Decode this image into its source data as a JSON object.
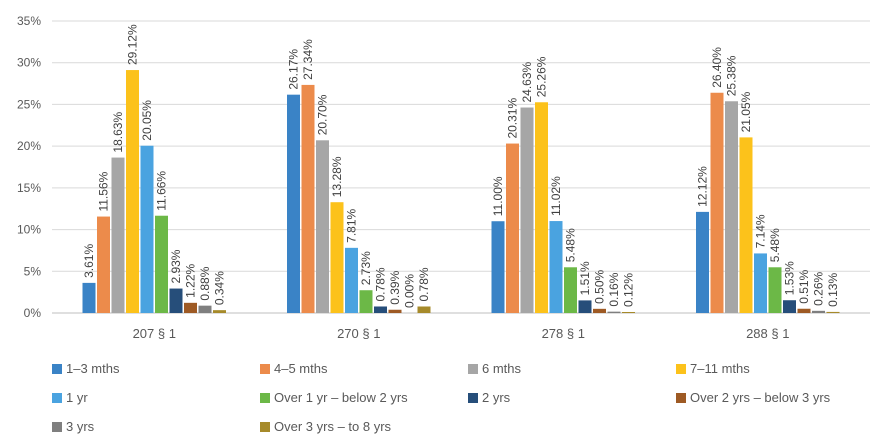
{
  "chart_data": {
    "type": "bar",
    "categories": [
      "207 § 1",
      "270 § 1",
      "278 § 1",
      "288 § 1"
    ],
    "series": [
      {
        "name": "1–3 mths",
        "color": "#3a83c6",
        "values": [
          3.61,
          26.17,
          11.0,
          12.12
        ],
        "labels": [
          "3.61%",
          "26.17%",
          "11.00%",
          "12.12%"
        ]
      },
      {
        "name": "4–5 mths",
        "color": "#ec8b4b",
        "values": [
          11.56,
          27.34,
          20.31,
          26.4
        ],
        "labels": [
          "11.56%",
          "27.34%",
          "20.31%",
          "26.40%"
        ]
      },
      {
        "name": "6 mths",
        "color": "#a6a6a6",
        "values": [
          18.63,
          20.7,
          24.63,
          25.38
        ],
        "labels": [
          "18.63%",
          "20.70%",
          "24.63%",
          "25.38%"
        ]
      },
      {
        "name": "7–11 mths",
        "color": "#fcc21b",
        "values": [
          29.12,
          13.28,
          25.26,
          21.05
        ],
        "labels": [
          "29.12%",
          "13.28%",
          "25.26%",
          "21.05%"
        ]
      },
      {
        "name": "1 yr",
        "color": "#4aa3e0",
        "values": [
          20.05,
          7.81,
          11.02,
          7.14
        ],
        "labels": [
          "20.05%",
          "7.81%",
          "11.02%",
          "7.14%"
        ]
      },
      {
        "name": "Over 1 yr – below 2 yrs",
        "color": "#6cb847",
        "values": [
          11.66,
          2.73,
          5.48,
          5.48
        ],
        "labels": [
          "11.66%",
          "2.73%",
          "5.48%",
          "5.48%"
        ]
      },
      {
        "name": "2 yrs",
        "color": "#264e7a",
        "values": [
          2.93,
          0.78,
          1.51,
          1.53
        ],
        "labels": [
          "2.93%",
          "0.78%",
          "1.51%",
          "1.53%"
        ]
      },
      {
        "name": "Over 2 yrs – below 3 yrs",
        "color": "#9e5a24",
        "values": [
          1.22,
          0.39,
          0.5,
          0.51
        ],
        "labels": [
          "1.22%",
          "0.39%",
          "0.50%",
          "0.51%"
        ]
      },
      {
        "name": "3 yrs",
        "color": "#7f7f7f",
        "values": [
          0.88,
          0.0,
          0.16,
          0.26
        ],
        "labels": [
          "0.88%",
          "0.00%",
          "0.16%",
          "0.26%"
        ]
      },
      {
        "name": "Over 3 yrs – to 8 yrs",
        "color": "#a68a2a",
        "values": [
          0.34,
          0.78,
          0.12,
          0.13
        ],
        "labels": [
          "0.34%",
          "0.78%",
          "0.12%",
          "0.13%"
        ]
      }
    ],
    "yticks": [
      "0%",
      "5%",
      "10%",
      "15%",
      "20%",
      "25%",
      "30%",
      "35%"
    ],
    "ylim": [
      0,
      35
    ],
    "grid": true,
    "legend_position": "bottom",
    "title": "",
    "xlabel": "",
    "ylabel": ""
  }
}
